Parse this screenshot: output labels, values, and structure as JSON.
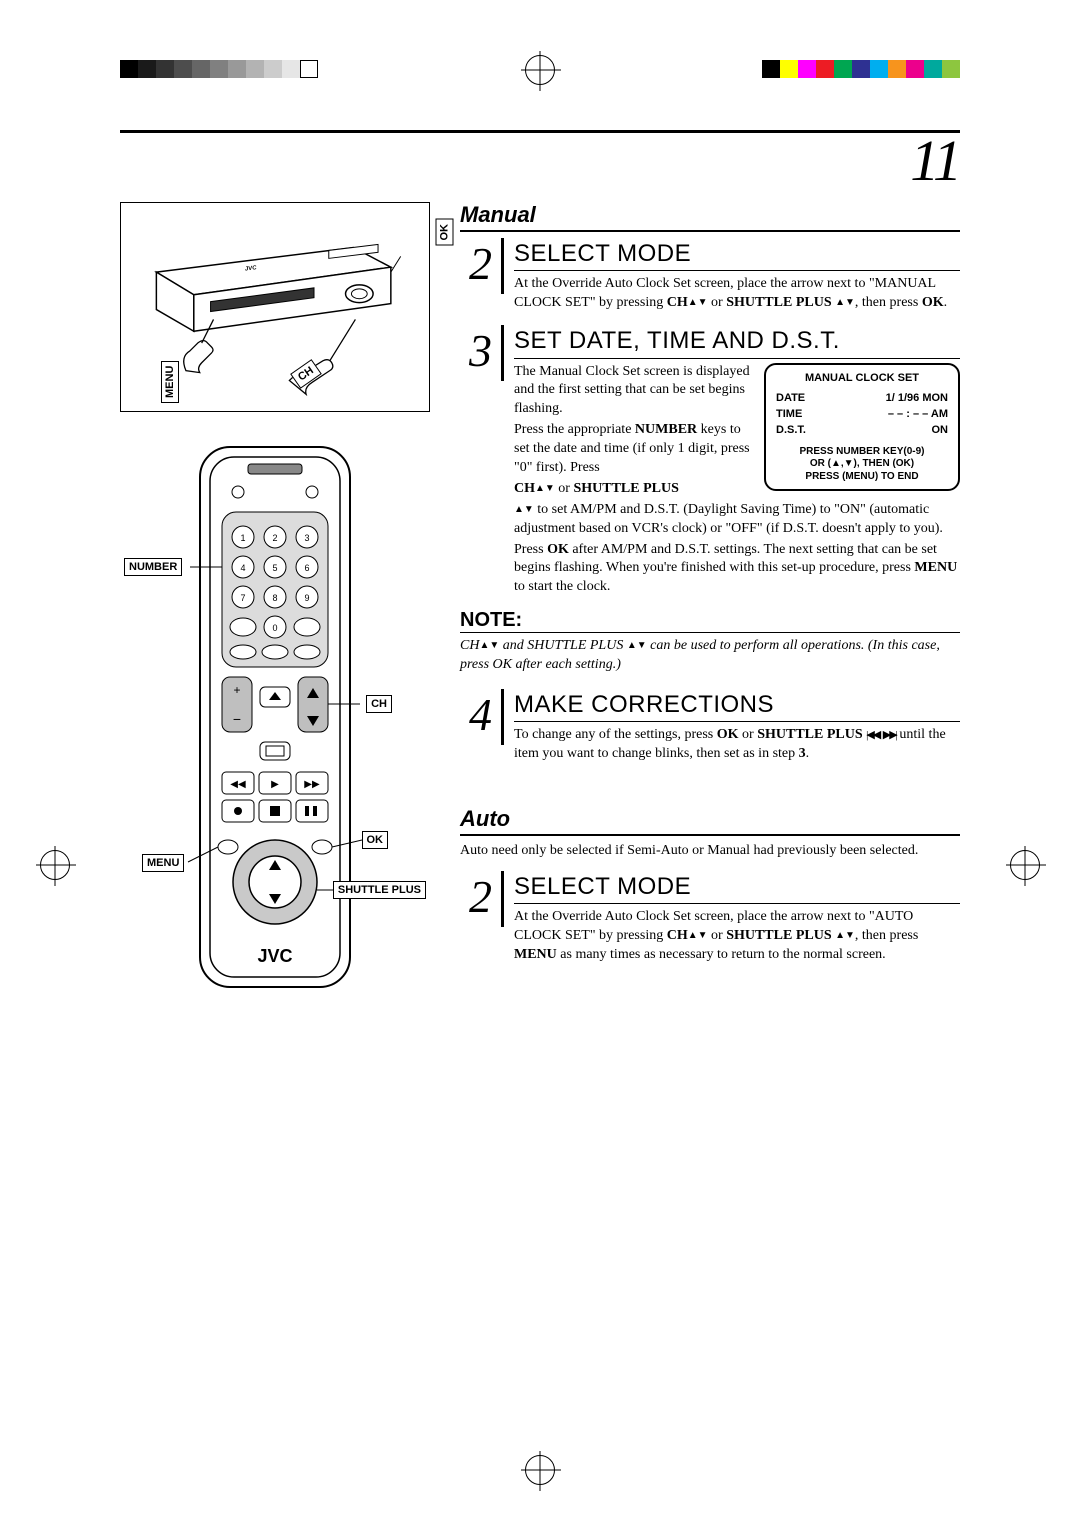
{
  "page_number": "11",
  "print_marks": {
    "gray_values": [
      "#000000",
      "#1a1a1a",
      "#333333",
      "#4d4d4d",
      "#666666",
      "#808080",
      "#999999",
      "#b3b3b3",
      "#cccccc",
      "#e6e6e6",
      "#ffffff"
    ],
    "color_values": [
      "#000000",
      "#ffff00",
      "#ff00ff",
      "#ed1c24",
      "#00a651",
      "#2e3192",
      "#00aeef",
      "#f7941d",
      "#ec008c",
      "#00a99d",
      "#8dc63f"
    ]
  },
  "manual": {
    "title": "Manual",
    "step2": {
      "num": "2",
      "title": "SELECT MODE",
      "text1": "At the Override Auto Clock Set screen, place the arrow next to \"MANUAL CLOCK SET\" by pressing",
      "text2_b1": "CH",
      "text2_mid": " or ",
      "text2_b2": "SHUTTLE PLUS ",
      "text2_end": ", then press ",
      "text2_ok": "OK",
      "text2_period": "."
    },
    "step3": {
      "num": "3",
      "title": "SET DATE, TIME AND D.S.T.",
      "p1": "The Manual Clock Set screen is displayed and the first setting that can be set begins flashing.",
      "p2": "Press the appropriate ",
      "p2_b1": "NUMBER",
      "p2_cont": " keys to set the date and time (if only 1 digit, press \"0\" first). Press",
      "p3_b1": "CH",
      "p3_mid": " or ",
      "p3_b2": "SHUTTLE PLUS",
      "p4": " to set AM/PM and D.S.T. (Daylight Saving Time) to \"ON\" (automatic adjustment based on VCR's clock) or \"OFF\" (if D.S.T. doesn't apply to you).",
      "p5a": "Press ",
      "p5_ok": "OK",
      "p5b": " after AM/PM and D.S.T. settings. The next setting that can be set begins flashing. When you're finished with this set-up procedure, press ",
      "p5_menu": "MENU",
      "p5c": " to start the clock."
    },
    "osd": {
      "title": "MANUAL CLOCK SET",
      "rows": [
        {
          "label": "DATE",
          "value": "1/ 1/96 MON"
        },
        {
          "label": "TIME",
          "value": "– – : – –  AM"
        },
        {
          "label": "D.S.T.",
          "value": "ON"
        }
      ],
      "footer1": "PRESS NUMBER KEY(0-9)",
      "footer2": "OR (▲,▼), THEN (OK)",
      "footer3": "PRESS (MENU) TO END"
    },
    "note": {
      "title": "NOTE:",
      "b1": "CH",
      "mid": " and ",
      "b2": "SHUTTLE PLUS ",
      "rest": " can be used to perform all operations. (In this case, press ",
      "ok": "OK",
      "end": " after each setting.)"
    },
    "step4": {
      "num": "4",
      "title": "MAKE CORRECTIONS",
      "t1": "To change any of the settings, press ",
      "ok": "OK",
      "t2": " or ",
      "sp": "SHUTTLE PLUS ",
      "t3": " until the item you want to change blinks, then set as in step ",
      "stepref": "3",
      "period": "."
    }
  },
  "auto": {
    "title": "Auto",
    "intro": "Auto need only be selected if Semi-Auto or Manual had previously been selected.",
    "step2": {
      "num": "2",
      "title": "SELECT MODE",
      "t1": "At the Override Auto Clock Set screen, place the arrow next to \"AUTO CLOCK SET\" by pressing ",
      "b1": "CH",
      "t2": " or ",
      "b2": "SHUTTLE PLUS ",
      "t3": ", then press ",
      "menu": "MENU",
      "t4": " as many times as necessary to return to the normal screen."
    }
  },
  "labels": {
    "ok": "OK",
    "ch": "CH",
    "menu": "MENU",
    "number": "NUMBER",
    "shuttle": "SHUTTLE PLUS"
  },
  "brand": "JVC",
  "colors": {
    "text": "#000000",
    "bg": "#ffffff",
    "rule": "#000000"
  }
}
